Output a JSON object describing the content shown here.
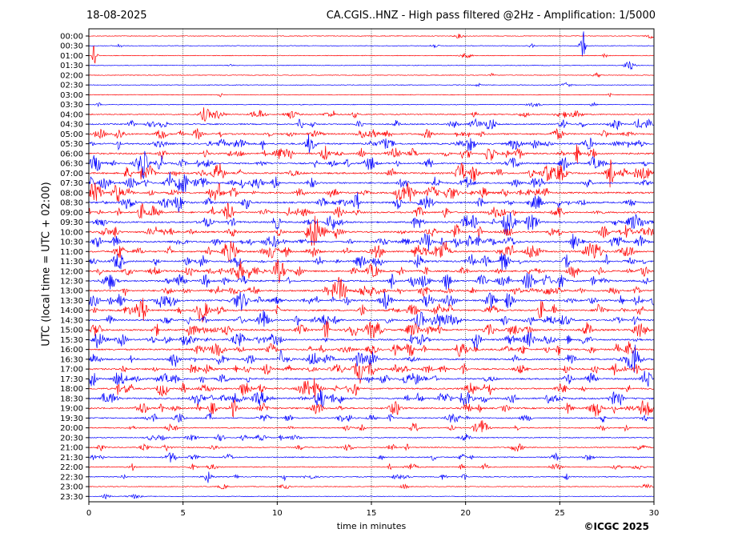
{
  "header": {
    "date": "18-08-2025",
    "title": "CA.CGIS..HNZ - High pass filtered @2Hz - Amplification: 1/5000"
  },
  "copyright": "©ICGC 2025",
  "chart_data": {
    "type": "line",
    "xlabel": "time in minutes",
    "ylabel": "UTC (local time = UTC + 02:00)",
    "xlim": [
      0,
      30
    ],
    "x_ticks": [
      0,
      5,
      10,
      15,
      20,
      25,
      30
    ],
    "x_gridlines": [
      5,
      10,
      15,
      20,
      25
    ],
    "row_labels": [
      "00:00",
      "00:30",
      "01:00",
      "01:30",
      "02:00",
      "02:30",
      "03:00",
      "03:30",
      "04:00",
      "04:30",
      "05:00",
      "05:30",
      "06:00",
      "06:30",
      "07:00",
      "07:30",
      "08:00",
      "08:30",
      "09:00",
      "09:30",
      "10:00",
      "10:30",
      "11:00",
      "11:30",
      "12:00",
      "12:30",
      "13:00",
      "13:30",
      "14:00",
      "14:30",
      "15:00",
      "15:30",
      "16:00",
      "16:30",
      "17:00",
      "17:30",
      "18:00",
      "18:30",
      "19:00",
      "19:30",
      "20:00",
      "20:30",
      "21:00",
      "21:30",
      "22:00",
      "22:30",
      "23:00",
      "23:30"
    ],
    "trace_colors": [
      "#ff0000",
      "#0000ff"
    ],
    "activity_by_row": [
      0.05,
      0.05,
      0.05,
      0.05,
      0.05,
      0.06,
      0.06,
      0.1,
      0.45,
      0.55,
      0.75,
      0.85,
      0.9,
      0.85,
      0.95,
      0.9,
      0.95,
      0.9,
      0.85,
      0.9,
      0.95,
      0.85,
      0.95,
      0.9,
      0.9,
      0.9,
      0.85,
      0.95,
      0.85,
      0.9,
      0.95,
      0.85,
      0.9,
      0.9,
      0.85,
      0.8,
      0.85,
      0.9,
      0.85,
      0.55,
      0.45,
      0.3,
      0.35,
      0.4,
      0.3,
      0.3,
      0.12,
      0.05
    ],
    "events": [
      {
        "row": 2,
        "minute": 0.3,
        "amplitude": 4.0
      },
      {
        "row": 1,
        "minute": 26.2,
        "amplitude": 8.0
      },
      {
        "row": 1,
        "minute": 23.5,
        "amplitude": 0.6
      },
      {
        "row": 3,
        "minute": 7.5,
        "amplitude": 0.5
      },
      {
        "row": 9,
        "minute": 11.9,
        "amplitude": 1.0
      },
      {
        "row": 12,
        "minute": 7.5,
        "amplitude": 1.0
      },
      {
        "row": 16,
        "minute": 3.3,
        "amplitude": 1.0
      },
      {
        "row": 22,
        "minute": 10.0,
        "amplitude": 1.0
      },
      {
        "row": 26,
        "minute": 16.5,
        "amplitude": 1.6
      },
      {
        "row": 29,
        "minute": 5.3,
        "amplitude": 1.2
      },
      {
        "row": 32,
        "minute": 17.8,
        "amplitude": 1.2
      },
      {
        "row": 43,
        "minute": 18.3,
        "amplitude": 1.2
      },
      {
        "row": 44,
        "minute": 2.3,
        "amplitude": 1.2
      },
      {
        "row": 45,
        "minute": 6.3,
        "amplitude": 1.0
      },
      {
        "row": 45,
        "minute": 10.4,
        "amplitude": 1.0
      }
    ]
  }
}
